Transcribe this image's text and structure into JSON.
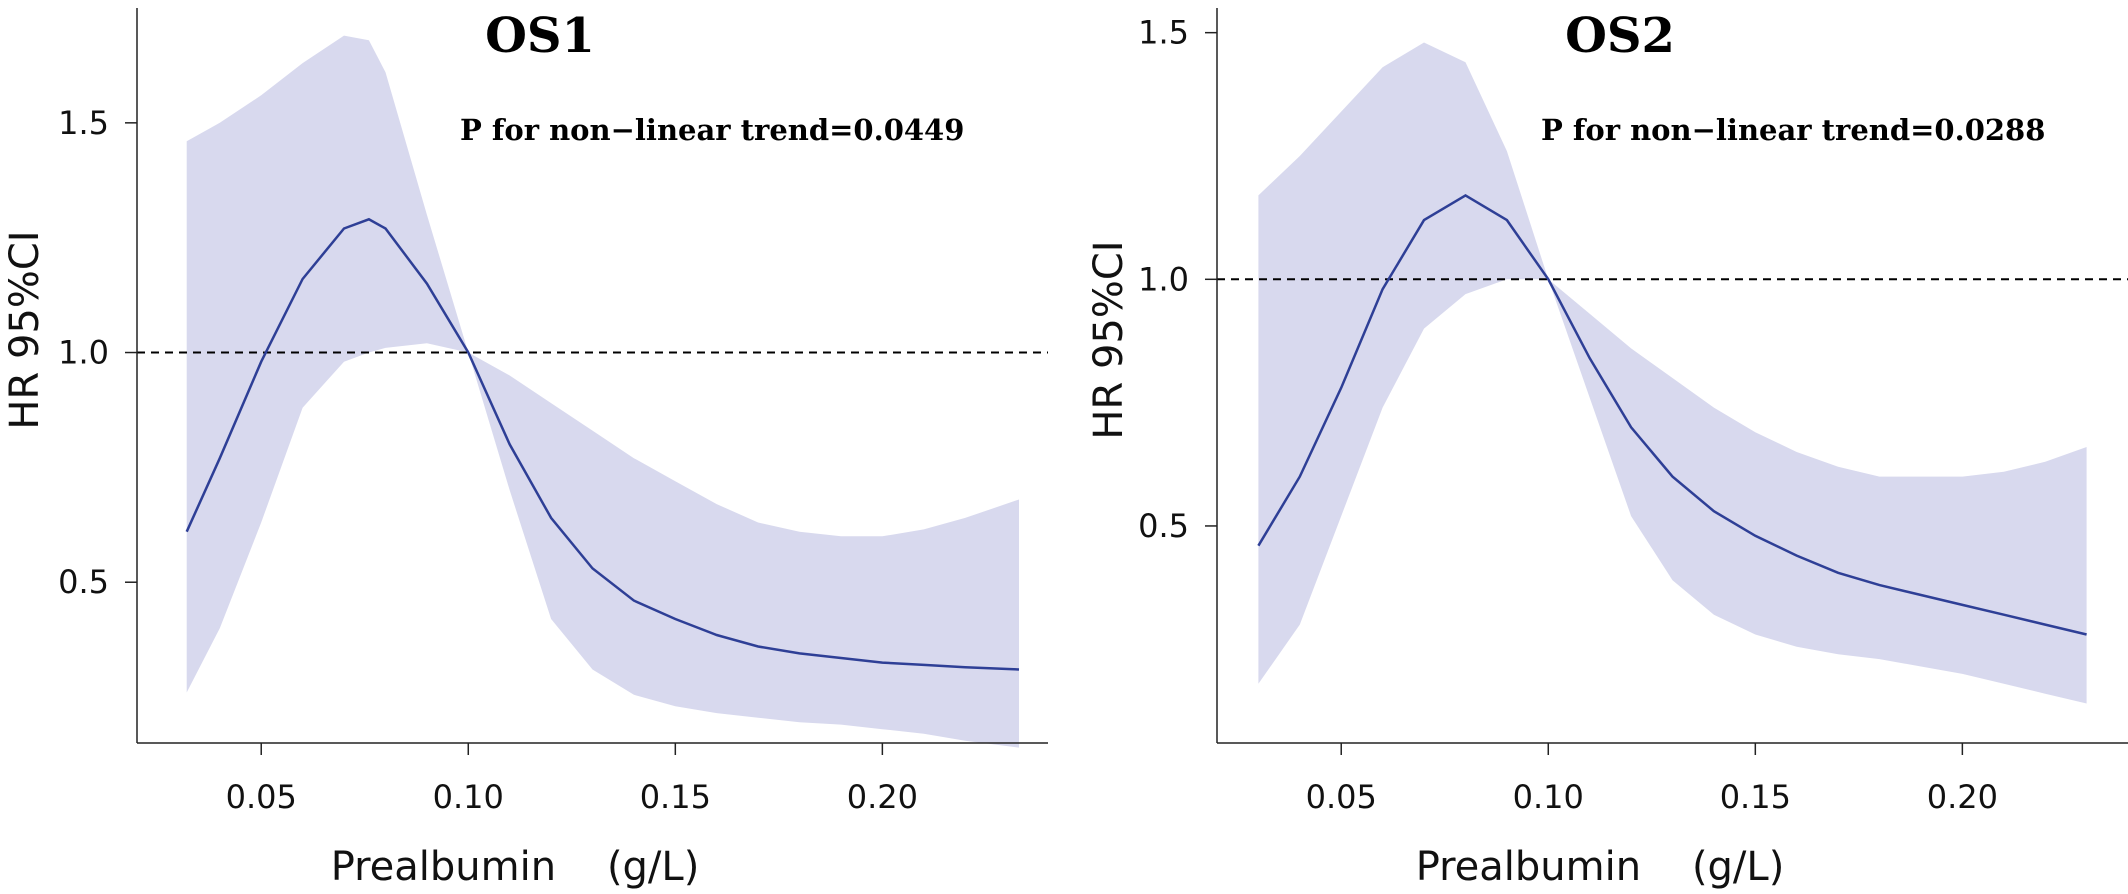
{
  "chart_data": [
    {
      "type": "line",
      "title": "OS1",
      "annotation": "P  for non−linear trend=0.0449",
      "xlabel": "Prealbumin    (g/L)",
      "ylabel": "HR 95%CI",
      "xlim": [
        0.02,
        0.24
      ],
      "ylim": [
        0.15,
        1.75
      ],
      "xticks": [
        0.05,
        0.1,
        0.15,
        0.2
      ],
      "xtick_labels": [
        "0.05",
        "0.10",
        "0.15",
        "0.20"
      ],
      "yticks": [
        0.5,
        1.0,
        1.5
      ],
      "ytick_labels": [
        "0.5",
        "1.0",
        "1.5"
      ],
      "reference_line": 1.0,
      "grid": false,
      "x": [
        0.032,
        0.04,
        0.05,
        0.06,
        0.07,
        0.076,
        0.08,
        0.09,
        0.1,
        0.11,
        0.12,
        0.13,
        0.14,
        0.15,
        0.16,
        0.17,
        0.18,
        0.19,
        0.2,
        0.21,
        0.22,
        0.233
      ],
      "hr": [
        0.61,
        0.77,
        0.98,
        1.16,
        1.27,
        1.29,
        1.27,
        1.15,
        1.0,
        0.8,
        0.64,
        0.53,
        0.46,
        0.42,
        0.385,
        0.36,
        0.345,
        0.335,
        0.325,
        0.32,
        0.315,
        0.31
      ],
      "lower": [
        0.26,
        0.4,
        0.63,
        0.88,
        0.98,
        1.0,
        1.01,
        1.02,
        1.0,
        0.7,
        0.42,
        0.31,
        0.255,
        0.23,
        0.215,
        0.205,
        0.195,
        0.19,
        0.18,
        0.17,
        0.155,
        0.14
      ],
      "upper": [
        1.46,
        1.5,
        1.56,
        1.63,
        1.69,
        1.68,
        1.61,
        1.3,
        1.0,
        0.95,
        0.89,
        0.83,
        0.77,
        0.72,
        0.67,
        0.63,
        0.61,
        0.6,
        0.6,
        0.615,
        0.64,
        0.68
      ],
      "colors": {
        "line": "#2e3f96",
        "band": "#d8d9ee",
        "reference": "#000000"
      }
    },
    {
      "type": "line",
      "title": "OS2",
      "annotation": "P  for non−linear trend=0.0288",
      "xlabel": "Prealbumin    (g/L)",
      "ylabel": "HR 95%CI",
      "xlim": [
        0.02,
        0.24
      ],
      "ylim": [
        0.06,
        1.55
      ],
      "xticks": [
        0.05,
        0.1,
        0.15,
        0.2
      ],
      "xtick_labels": [
        "0.05",
        "0.10",
        "0.15",
        "0.20"
      ],
      "yticks": [
        0.5,
        1.0,
        1.5
      ],
      "ytick_labels": [
        "0.5",
        "1.0",
        "1.5"
      ],
      "reference_line": 1.0,
      "grid": false,
      "x": [
        0.03,
        0.04,
        0.05,
        0.06,
        0.07,
        0.08,
        0.09,
        0.1,
        0.11,
        0.12,
        0.13,
        0.14,
        0.15,
        0.16,
        0.17,
        0.18,
        0.19,
        0.2,
        0.21,
        0.22,
        0.23
      ],
      "hr": [
        0.46,
        0.6,
        0.78,
        0.98,
        1.12,
        1.17,
        1.12,
        1.0,
        0.84,
        0.7,
        0.6,
        0.53,
        0.48,
        0.44,
        0.405,
        0.38,
        0.36,
        0.34,
        0.32,
        0.3,
        0.28
      ],
      "lower": [
        0.18,
        0.3,
        0.52,
        0.74,
        0.9,
        0.97,
        1.0,
        1.0,
        0.76,
        0.52,
        0.39,
        0.32,
        0.28,
        0.255,
        0.24,
        0.23,
        0.215,
        0.2,
        0.18,
        0.16,
        0.14
      ],
      "upper": [
        1.17,
        1.25,
        1.34,
        1.43,
        1.48,
        1.44,
        1.26,
        1.0,
        0.93,
        0.86,
        0.8,
        0.74,
        0.69,
        0.65,
        0.62,
        0.6,
        0.6,
        0.6,
        0.61,
        0.63,
        0.66
      ],
      "colors": {
        "line": "#2e3f96",
        "band": "#d8d9ee",
        "reference": "#000000"
      }
    }
  ]
}
